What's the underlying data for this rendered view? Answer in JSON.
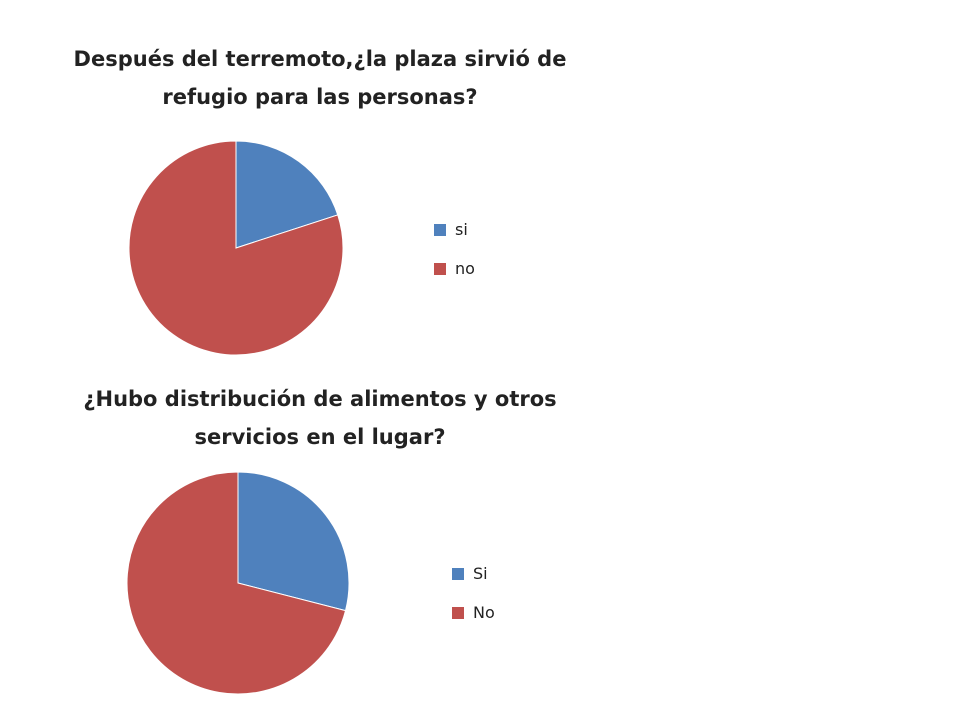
{
  "colors": {
    "series_a": "#4f81bd",
    "series_b": "#c0504d"
  },
  "chart_data": [
    {
      "type": "pie",
      "title_lines": [
        "Después del terremoto,¿la plaza sirvió de",
        "refugio para las personas?"
      ],
      "categories": [
        "si",
        "no"
      ],
      "values": [
        20,
        80
      ],
      "legend_position": "right"
    },
    {
      "type": "pie",
      "title_lines": [
        "¿Hubo distribución de alimentos y otros",
        "servicios en el lugar?"
      ],
      "categories": [
        "Si",
        "No"
      ],
      "values": [
        29,
        71
      ],
      "legend_position": "right"
    }
  ]
}
